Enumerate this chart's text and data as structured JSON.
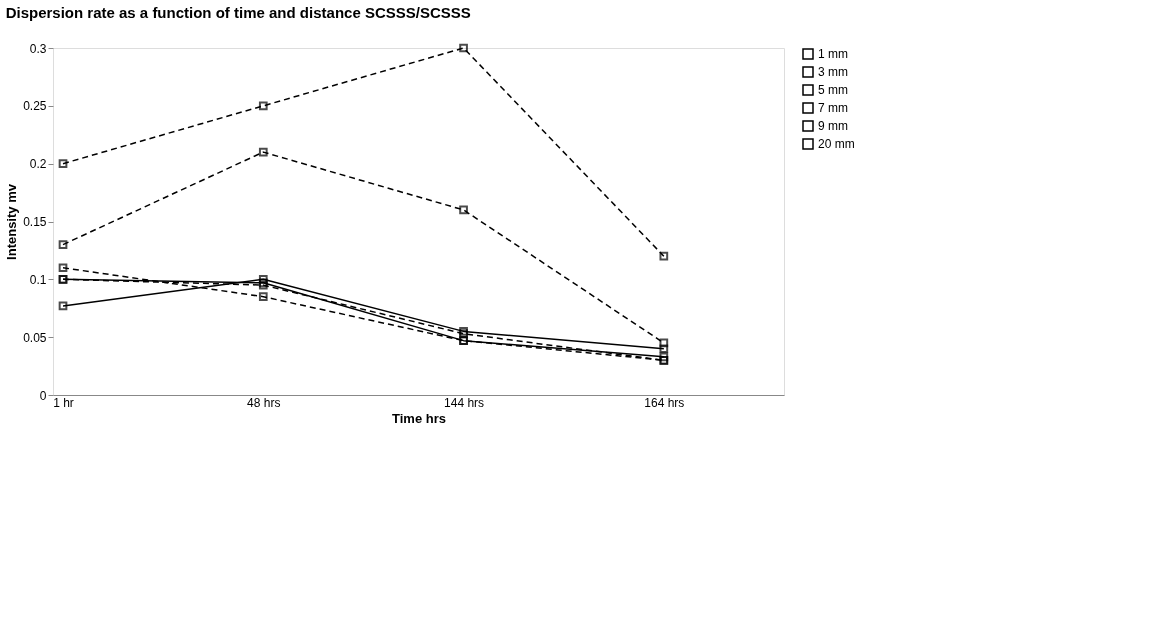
{
  "chart_data": {
    "type": "line",
    "title": "Dispersion rate as a function of time and distance SCSSS/SCSSS",
    "xlabel": "Time hrs",
    "ylabel": "Intensity mv",
    "categories": [
      "1 hr",
      "48 hrs",
      "144 hrs",
      "164 hrs"
    ],
    "series": [
      {
        "name": "1 mm",
        "color": "#000000",
        "line_style": "dashed",
        "values": [
          0.2,
          0.25,
          0.3,
          0.12
        ]
      },
      {
        "name": "3 mm",
        "color": "#000000",
        "line_style": "dashed",
        "values": [
          0.13,
          0.21,
          0.16,
          0.045
        ]
      },
      {
        "name": "5 mm",
        "color": "#000000",
        "line_style": "solid",
        "values": [
          0.1,
          0.097,
          0.047,
          0.033
        ]
      },
      {
        "name": "7 mm",
        "color": "#000000",
        "line_style": "dashed",
        "values": [
          0.11,
          0.085,
          0.047,
          0.03
        ]
      },
      {
        "name": "9 mm",
        "color": "#000000",
        "line_style": "solid",
        "values": [
          0.077,
          0.1,
          0.055,
          0.04
        ]
      },
      {
        "name": "20 mm",
        "color": "#000000",
        "line_style": "dashed",
        "values": [
          0.1,
          0.095,
          0.053,
          0.03
        ]
      }
    ],
    "ylim": [
      0,
      0.3
    ],
    "yticks": [
      0,
      0.05,
      0.1,
      0.15,
      0.2,
      0.25,
      0.3
    ],
    "grid": false,
    "legend": "right",
    "marker": "square"
  }
}
